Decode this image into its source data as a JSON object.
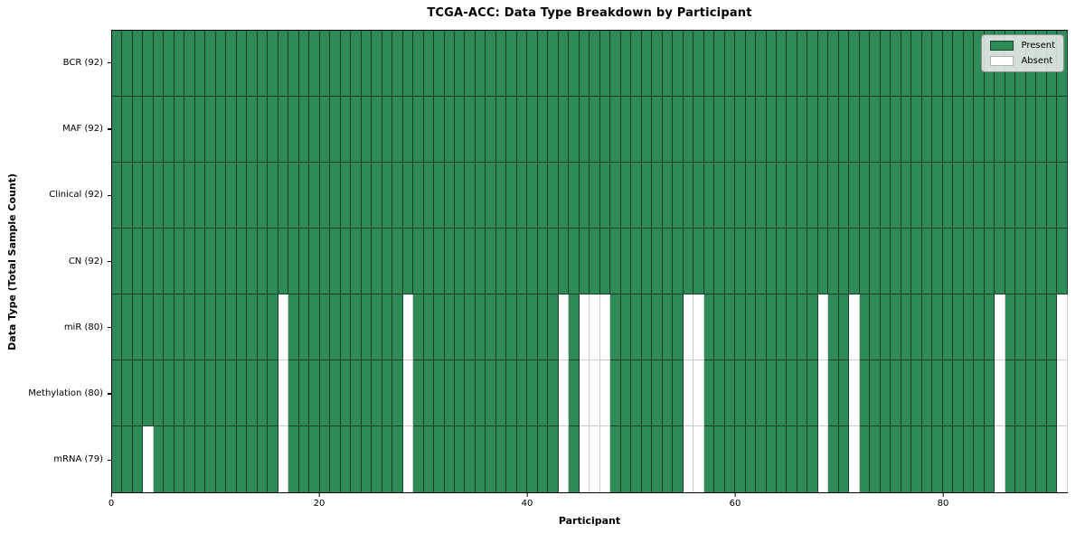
{
  "chart_data": {
    "type": "heatmap",
    "title": "TCGA-ACC: Data Type Breakdown by Participant",
    "xlabel": "Participant",
    "ylabel": "Data Type (Total Sample Count)",
    "legend": [
      "Present",
      "Absent"
    ],
    "legend_position": "upper right",
    "x_range": [
      0,
      92
    ],
    "x_ticks": [
      0,
      20,
      40,
      60,
      80
    ],
    "n_participants": 92,
    "cell_states": [
      "present",
      "absent"
    ],
    "rows": [
      {
        "label": "BCR (92)",
        "present_count": 92,
        "absent_participants": []
      },
      {
        "label": "MAF (92)",
        "present_count": 92,
        "absent_participants": []
      },
      {
        "label": "Clinical (92)",
        "present_count": 92,
        "absent_participants": []
      },
      {
        "label": "CN (92)",
        "present_count": 92,
        "absent_participants": []
      },
      {
        "label": "miR (80)",
        "present_count": 80,
        "absent_participants": [
          16,
          28,
          43,
          45,
          46,
          47,
          55,
          56,
          68,
          71,
          85,
          91
        ]
      },
      {
        "label": "Methylation (80)",
        "present_count": 80,
        "absent_participants": [
          16,
          28,
          43,
          45,
          46,
          47,
          55,
          56,
          68,
          71,
          85,
          91
        ]
      },
      {
        "label": "mRNA (79)",
        "present_count": 79,
        "absent_participants": [
          3,
          16,
          28,
          43,
          45,
          46,
          47,
          55,
          56,
          68,
          71,
          85,
          91
        ]
      }
    ]
  },
  "colors": {
    "present": "#2e8b57",
    "absent": "#ffffff",
    "present_grid": "rgba(0,0,0,0.55)",
    "absent_grid": "#cccccc",
    "spine": "#000000",
    "legend_bg": "rgba(238,238,238,0.85)",
    "legend_border": "#8f8f8f",
    "text": "#000000",
    "background": "#ffffff"
  }
}
